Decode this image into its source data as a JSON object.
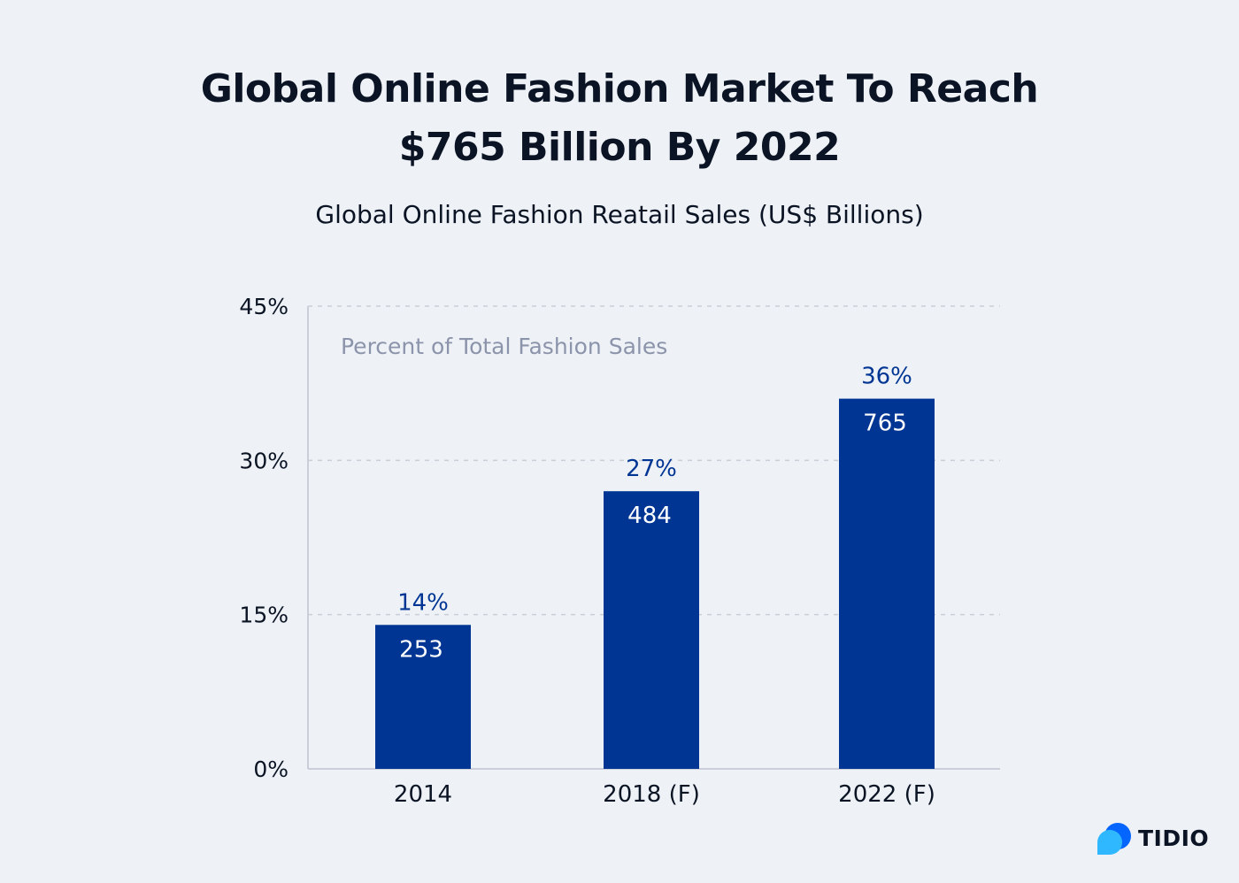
{
  "title_lines": [
    "Global Online Fashion Market To Reach",
    "$765 Billion By 2022"
  ],
  "subtitle": "Global Online Fashion Reatail Sales (US$ Billions)",
  "colors": {
    "background": "#eef2f6",
    "bar": "#003594",
    "percent_label": "#003594",
    "inner_label": "#ffffff",
    "annotation": "#8c94ab",
    "grid": "#c9ced8",
    "axis": "#c9ced8",
    "text": "#0b1424"
  },
  "chart_data": {
    "type": "bar",
    "categories": [
      "2014",
      "2018 (F)",
      "2022 (F)"
    ],
    "series": [
      {
        "values": [
          14,
          27,
          36
        ],
        "value_labels": [
          "14%",
          "27%",
          "36%"
        ],
        "inner_labels": [
          "253",
          "484",
          "765"
        ]
      }
    ],
    "yticks": [
      "45%",
      "30%",
      "15%",
      "0%"
    ],
    "ytick_values": [
      45,
      30,
      15,
      0
    ],
    "ylim": [
      0,
      45
    ],
    "grid": true,
    "annotation": "Percent of Total Fashion Sales"
  },
  "logo": {
    "text": "TIDIO",
    "icon": "tidio-chat-bubble-icon",
    "colors": [
      "#0566ff",
      "#2fb8ff"
    ]
  }
}
